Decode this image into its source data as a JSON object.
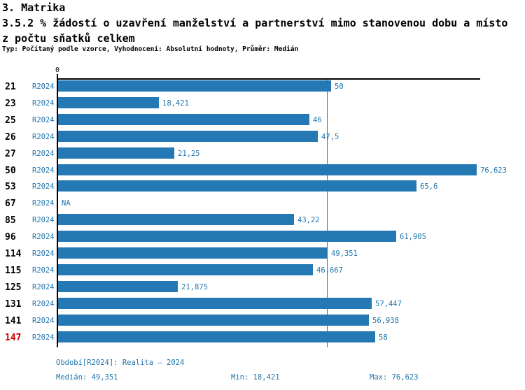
{
  "header": {
    "title_line1": "3. Matrika",
    "title_line2": "3.5.2 % žádostí o uzavření manželství a partnerství mimo stanovenou dobu a místo",
    "title_line3": "z počtu sňatků celkem",
    "subtitle": "Typ: Počítaný podle vzorce, Vyhodnocení: Absolutní hodnoty, Průměr: Medián"
  },
  "chart_data": {
    "type": "bar",
    "orientation": "horizontal",
    "title": "3.5.2 % žádostí o uzavření manželství a partnerství mimo stanovenou dobu a místo z počtu sňatků celkem",
    "xlabel": "",
    "ylabel": "",
    "x_axis": {
      "zero_label": "0",
      "min": 0,
      "max": 76.623
    },
    "grid": false,
    "legend_position": "none",
    "categories": [
      "21",
      "23",
      "25",
      "26",
      "27",
      "50",
      "53",
      "67",
      "85",
      "96",
      "114",
      "115",
      "125",
      "131",
      "141",
      "147"
    ],
    "series": [
      {
        "name": "R2024",
        "values": [
          50,
          18.421,
          46,
          47.5,
          21.25,
          76.623,
          65.6,
          null,
          43.22,
          61.905,
          49.351,
          46.667,
          21.875,
          57.447,
          56.938,
          58
        ]
      }
    ],
    "rows": [
      {
        "id": "21",
        "period": "R2024",
        "value": 50,
        "label": "50",
        "highlight": false
      },
      {
        "id": "23",
        "period": "R2024",
        "value": 18.421,
        "label": "18,421",
        "highlight": false
      },
      {
        "id": "25",
        "period": "R2024",
        "value": 46,
        "label": "46",
        "highlight": false
      },
      {
        "id": "26",
        "period": "R2024",
        "value": 47.5,
        "label": "47,5",
        "highlight": false
      },
      {
        "id": "27",
        "period": "R2024",
        "value": 21.25,
        "label": "21,25",
        "highlight": false
      },
      {
        "id": "50",
        "period": "R2024",
        "value": 76.623,
        "label": "76,623",
        "highlight": false
      },
      {
        "id": "53",
        "period": "R2024",
        "value": 65.6,
        "label": "65,6",
        "highlight": false
      },
      {
        "id": "67",
        "period": "R2024",
        "value": null,
        "label": "NA",
        "highlight": false
      },
      {
        "id": "85",
        "period": "R2024",
        "value": 43.22,
        "label": "43,22",
        "highlight": false
      },
      {
        "id": "96",
        "period": "R2024",
        "value": 61.905,
        "label": "61,905",
        "highlight": false
      },
      {
        "id": "114",
        "period": "R2024",
        "value": 49.351,
        "label": "49,351",
        "highlight": false
      },
      {
        "id": "115",
        "period": "R2024",
        "value": 46.667,
        "label": "46,667",
        "highlight": false
      },
      {
        "id": "125",
        "period": "R2024",
        "value": 21.875,
        "label": "21,875",
        "highlight": false
      },
      {
        "id": "131",
        "period": "R2024",
        "value": 57.447,
        "label": "57,447",
        "highlight": false
      },
      {
        "id": "141",
        "period": "R2024",
        "value": 56.938,
        "label": "56,938",
        "highlight": false
      },
      {
        "id": "147",
        "period": "R2024",
        "value": 58,
        "label": "58",
        "highlight": true
      }
    ],
    "median_line_value": 49.351,
    "stats": {
      "median": 49.351,
      "min": 18.421,
      "max": 76.623
    }
  },
  "footer": {
    "period_info": "Období[R2024]: Realita – 2024",
    "median": "Medián: 49,351",
    "min": "Min: 18,421",
    "max": "Max: 76,623"
  },
  "colors": {
    "bar": "#2478b4",
    "accent_text": "#2176ae",
    "median_line": "#2478b4",
    "highlight_row": "#cc0000",
    "axis": "#000000"
  }
}
